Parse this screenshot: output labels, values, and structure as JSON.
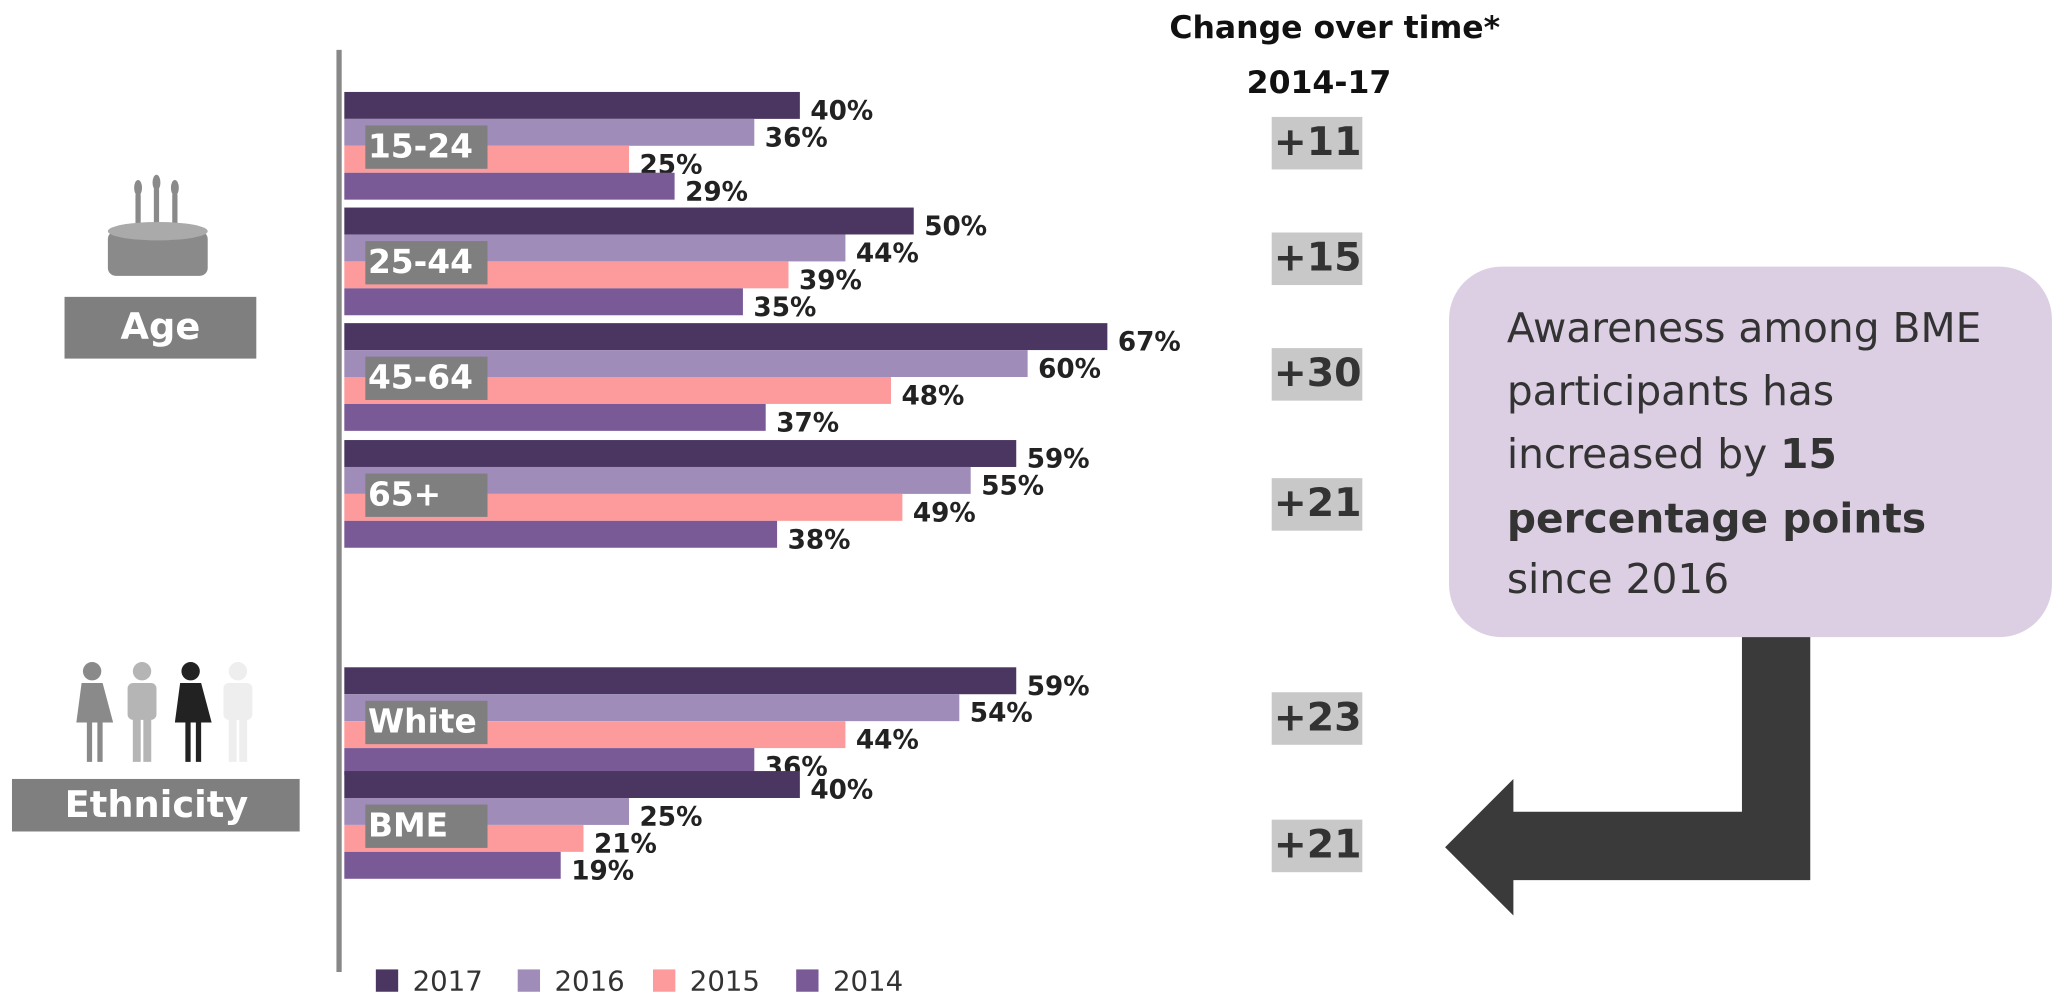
{
  "chart_data": {
    "type": "bar",
    "orientation": "horizontal",
    "categories": [
      "15-24",
      "25-44",
      "45-64",
      "65+",
      "White",
      "BME"
    ],
    "groups": [
      {
        "label": "Age",
        "categories": [
          0,
          1,
          2,
          3
        ]
      },
      {
        "label": "Ethnicity",
        "categories": [
          4,
          5
        ]
      }
    ],
    "series": [
      {
        "name": "2017",
        "color": "#4a3660",
        "values": [
          40,
          50,
          67,
          59,
          59,
          40
        ],
        "value_labels": [
          "40%",
          "50%",
          "67%",
          "59%",
          "59%",
          "40%"
        ]
      },
      {
        "name": "2016",
        "color": "#a08cb8",
        "values": [
          36,
          44,
          60,
          55,
          54,
          25
        ],
        "value_labels": [
          "36%",
          "44%",
          "60%",
          "55%",
          "54%",
          "25%"
        ]
      },
      {
        "name": "2015",
        "color": "#fd9a9c",
        "values": [
          25,
          39,
          48,
          49,
          44,
          21
        ],
        "value_labels": [
          "25%",
          "39%",
          "48%",
          "49%",
          "44%",
          "21%"
        ]
      },
      {
        "name": "2014",
        "color": "#7a5a96",
        "values": [
          29,
          35,
          37,
          38,
          36,
          19
        ],
        "value_labels": [
          "29%",
          "35%",
          "37%",
          "38%",
          "36%",
          "19%"
        ]
      }
    ],
    "xlim": [
      0,
      100
    ],
    "change_title": "Change over time*",
    "change_subtitle": "2014-17",
    "changes": [
      "+11",
      "+15",
      "+30",
      "+21",
      "+23",
      "+21"
    ],
    "callout": [
      "Awareness among BME",
      "participants has",
      "increased by ",
      "15",
      "percentage points",
      "since 2016"
    ],
    "legend": "bottom"
  }
}
